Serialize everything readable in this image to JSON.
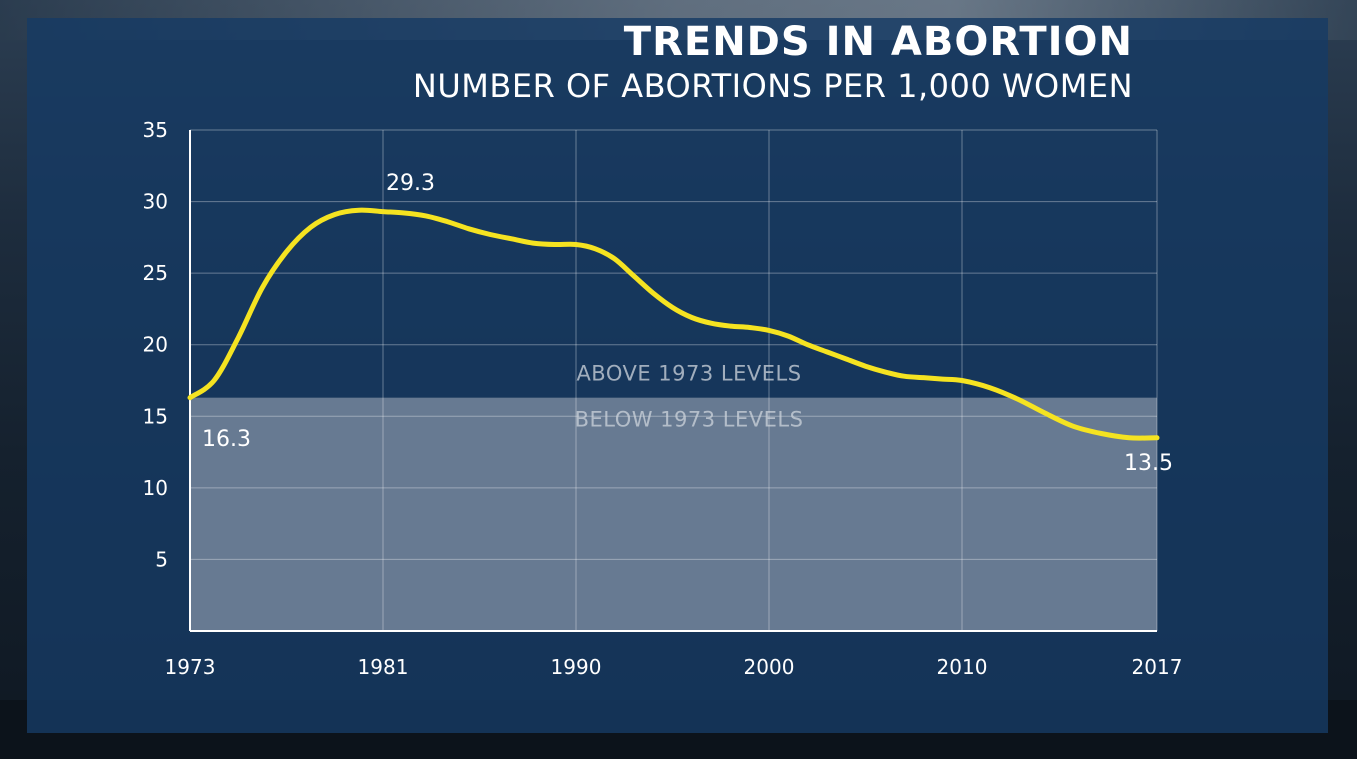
{
  "colors": {
    "panel": "#163a64",
    "line": "#f5e321",
    "band": "#9aa4b4",
    "text": "#ffffff"
  },
  "header": {
    "title": "TRENDS IN ABORTION",
    "subtitle": "NUMBER OF ABORTIONS PER 1,000 WOMEN"
  },
  "chart_data": {
    "type": "line",
    "title": "TRENDS IN ABORTION",
    "subtitle": "NUMBER OF ABORTIONS PER 1,000 WOMEN",
    "x_ticks": [
      "1973",
      "1981",
      "1990",
      "2000",
      "2010",
      "2017"
    ],
    "y_ticks": [
      5,
      10,
      15,
      20,
      25,
      30,
      35
    ],
    "ylim": [
      0,
      35
    ],
    "grid": true,
    "series": [
      {
        "x": [
          1973,
          1974,
          1975,
          1976,
          1977,
          1978,
          1979,
          1980,
          1981,
          1982,
          1983,
          1984,
          1985,
          1986,
          1987,
          1988,
          1989,
          1990,
          1991,
          1992,
          1993,
          1994,
          1995,
          1996,
          1997,
          1998,
          1999,
          2000,
          2001,
          2002,
          2003,
          2004,
          2005,
          2006,
          2007,
          2008,
          2009,
          2010,
          2011,
          2012,
          2013,
          2014,
          2015,
          2016,
          2017
        ],
        "values": [
          16.3,
          17.5,
          20.5,
          24.0,
          26.5,
          28.2,
          29.1,
          29.4,
          29.3,
          29.2,
          29.0,
          28.6,
          28.1,
          27.7,
          27.4,
          27.1,
          27.0,
          27.0,
          26.7,
          26.0,
          24.8,
          23.6,
          22.6,
          21.9,
          21.5,
          21.3,
          21.2,
          21.0,
          20.6,
          20.0,
          19.5,
          19.0,
          18.5,
          18.1,
          17.8,
          17.7,
          17.6,
          17.5,
          17.0,
          16.2,
          15.2,
          14.3,
          13.8,
          13.5,
          13.5
        ]
      }
    ],
    "annotations": [
      {
        "text": "16.3",
        "x": 1973,
        "y": 16.3
      },
      {
        "text": "29.3",
        "x": 1981,
        "y": 29.3
      },
      {
        "text": "13.5",
        "x": 2017,
        "y": 13.5
      }
    ],
    "reference_band": {
      "threshold": 16.3,
      "above_label": "ABOVE 1973 LEVELS",
      "below_label": "BELOW 1973 LEVELS"
    }
  }
}
